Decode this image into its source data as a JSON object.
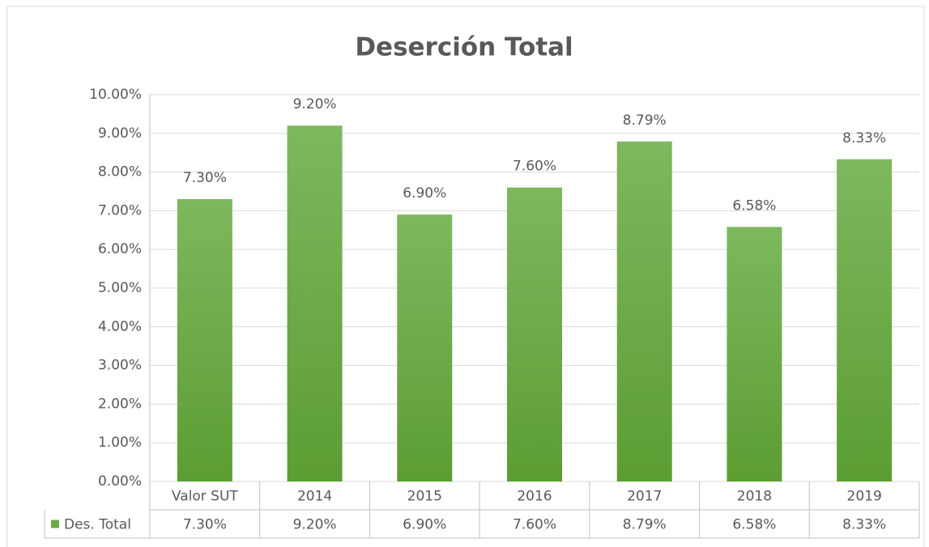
{
  "chart_data": {
    "type": "bar",
    "title": "Deserción Total",
    "categories": [
      "Valor SUT",
      "2014",
      "2015",
      "2016",
      "2017",
      "2018",
      "2019"
    ],
    "series": [
      {
        "name": "Des. Total",
        "color": "#6aaa45",
        "values": [
          7.3,
          9.2,
          6.9,
          7.6,
          8.79,
          6.58,
          8.33
        ],
        "value_labels": [
          "7.30%",
          "9.20%",
          "6.90%",
          "7.60%",
          "8.79%",
          "6.58%",
          "8.33%"
        ]
      }
    ],
    "ylim": [
      0,
      10
    ],
    "yticks": [
      {
        "value": 0,
        "label": "0.00%"
      },
      {
        "value": 1,
        "label": "1.00%"
      },
      {
        "value": 2,
        "label": "2.00%"
      },
      {
        "value": 3,
        "label": "3.00%"
      },
      {
        "value": 4,
        "label": "4.00%"
      },
      {
        "value": 5,
        "label": "5.00%"
      },
      {
        "value": 6,
        "label": "6.00%"
      },
      {
        "value": 7,
        "label": "7.00%"
      },
      {
        "value": 8,
        "label": "8.00%"
      },
      {
        "value": 9,
        "label": "9.00%"
      },
      {
        "value": 10,
        "label": "10.00%"
      }
    ],
    "grid": true
  }
}
